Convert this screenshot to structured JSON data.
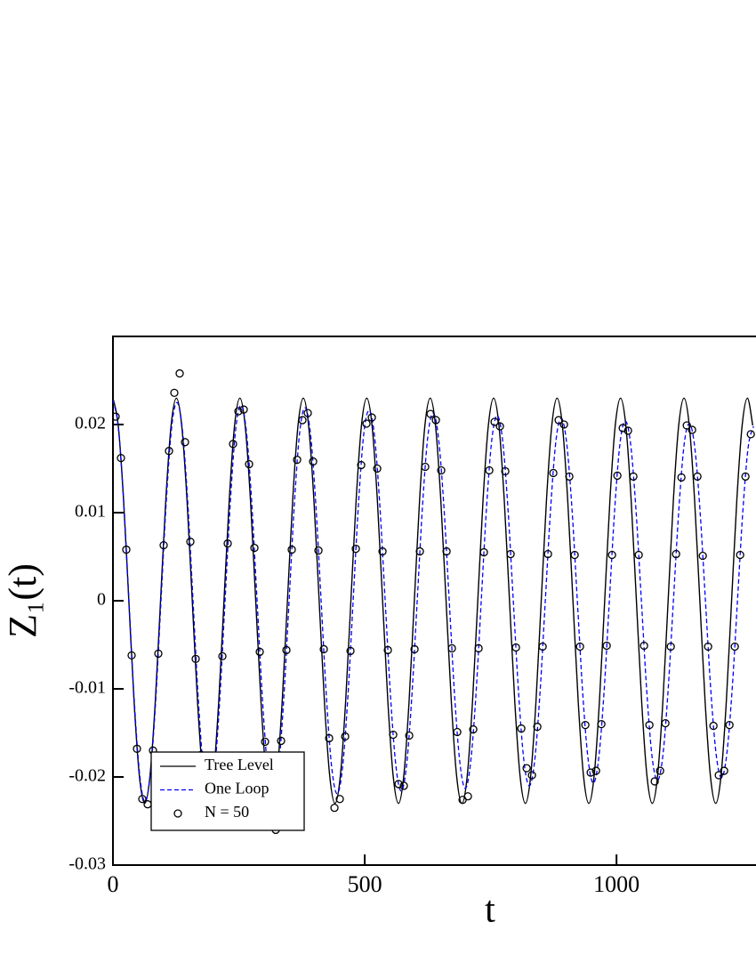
{
  "chart_data": {
    "type": "line",
    "xlabel": "t",
    "ylabel": "Z₁(t)",
    "xlim": [
      0,
      1277
    ],
    "ylim": [
      -0.03,
      0.03
    ],
    "xticks": [
      0,
      500,
      1000
    ],
    "yticks": [
      -0.03,
      -0.02,
      -0.01,
      0,
      0.01,
      0.02
    ],
    "legend": "lower left",
    "series": [
      {
        "name": "Tree Level",
        "type": "line",
        "color": "#000000",
        "dash": false,
        "x": [
          0,
          10.5,
          21,
          31.5,
          42,
          52.5,
          63,
          73.5,
          84,
          94.5,
          105,
          115.5,
          126,
          136.5,
          147,
          157.5,
          168,
          178.5,
          189,
          199.5,
          210,
          220.5,
          231,
          241.5,
          252,
          262.5,
          273,
          283.5,
          294,
          304.5,
          315,
          325.5,
          336,
          346.5,
          357,
          367.5,
          378,
          388.5,
          399,
          409.5,
          420,
          430.5,
          441,
          451.5,
          462,
          472.5,
          483,
          493.5,
          504,
          514.5,
          525,
          535.5,
          546,
          556.5,
          567,
          577.5,
          588,
          598.5,
          609,
          619.5,
          630,
          640.5,
          651,
          661.5,
          672,
          682.5,
          693,
          703.5,
          714,
          724.5,
          735,
          745.5,
          756,
          766.5,
          777,
          787.5,
          798,
          808.5,
          819,
          829.5,
          840,
          850.5,
          861,
          871.5,
          882,
          892.5,
          903,
          913.5,
          924,
          934.5,
          945,
          955.5,
          966,
          976.5,
          987,
          997.5,
          1008,
          1018.5,
          1029,
          1039.5,
          1050,
          1060.5,
          1071,
          1081.5,
          1092,
          1102.5,
          1113,
          1123.5,
          1134,
          1144.5,
          1155,
          1165.5,
          1176,
          1186.5,
          1197,
          1207.5,
          1218,
          1228.5,
          1239,
          1249.5,
          1260,
          1270.5
        ],
        "values": [
          0.023,
          0.0199,
          0.0115,
          0,
          -0.0115,
          -0.0199,
          -0.023,
          -0.0199,
          -0.0115,
          0,
          0.0115,
          0.0199,
          0.023,
          0.0199,
          0.0115,
          0,
          -0.0115,
          -0.0199,
          -0.023,
          -0.0199,
          -0.0115,
          0,
          0.0115,
          0.0199,
          0.023,
          0.0199,
          0.0115,
          0,
          -0.0115,
          -0.0199,
          -0.023,
          -0.0199,
          -0.0115,
          0,
          0.0115,
          0.0199,
          0.023,
          0.0199,
          0.0115,
          0,
          -0.0115,
          -0.0199,
          -0.023,
          -0.0199,
          -0.0115,
          0,
          0.0115,
          0.0199,
          0.023,
          0.0199,
          0.0115,
          0,
          -0.0115,
          -0.0199,
          -0.023,
          -0.0199,
          -0.0115,
          0,
          0.0115,
          0.0199,
          0.023,
          0.0199,
          0.0115,
          0,
          -0.0115,
          -0.0199,
          -0.023,
          -0.0199,
          -0.0115,
          0,
          0.0115,
          0.0199,
          0.023,
          0.0199,
          0.0115,
          0,
          -0.0115,
          -0.0199,
          -0.023,
          -0.0199,
          -0.0115,
          0,
          0.0115,
          0.0199,
          0.023,
          0.0199,
          0.0115,
          0,
          -0.0115,
          -0.0199,
          -0.023,
          -0.0199,
          -0.0115,
          0,
          0.0115,
          0.0199,
          0.023,
          0.0199,
          0.0115,
          0,
          -0.0115,
          -0.0199,
          -0.023,
          -0.0199,
          -0.0115,
          0,
          0.0115,
          0.0199,
          0.023,
          0.0199,
          0.0115,
          0,
          -0.0115,
          -0.0199,
          -0.023,
          -0.0199,
          -0.0115,
          0,
          0.0115,
          0.0199,
          0.023,
          0.0199
        ]
      },
      {
        "name": "One Loop",
        "type": "line",
        "color": "#0000ff",
        "dash": true,
        "x": [
          0,
          10.6,
          21.2,
          31.8,
          42.4,
          53,
          63.6,
          74.2,
          84.8,
          95.4,
          106,
          116.6,
          127.2,
          137.8,
          148.4,
          159,
          169.6,
          180.2,
          190.8,
          201.4,
          212,
          222.6,
          233.2,
          243.8,
          254.4,
          265,
          275.6,
          286.2,
          296.8,
          307.4,
          318,
          328.6,
          339.2,
          349.8,
          360.4,
          371,
          381.6,
          392.2,
          402.8,
          413.4,
          424,
          434.6,
          445.2,
          455.8,
          466.4,
          477,
          487.6,
          498.2,
          508.8,
          519.4,
          530,
          540.6,
          551.2,
          561.8,
          572.4,
          583,
          593.6,
          604.2,
          614.8,
          625.4,
          636,
          646.6,
          657.2,
          667.8,
          678.4,
          689,
          699.6,
          710.2,
          720.8,
          731.4,
          742,
          752.6,
          763.2,
          773.8,
          784.4,
          795,
          805.6,
          816.2,
          826.8,
          837.4,
          848,
          858.6,
          869.2,
          879.8,
          890.4,
          901,
          911.6,
          922.2,
          932.8,
          943.4,
          954,
          964.6,
          975.2,
          985.8,
          996.4,
          1007,
          1017.6,
          1028.2,
          1038.8,
          1049.4,
          1060,
          1070.6,
          1081.2,
          1091.8,
          1102.4,
          1113,
          1123.6,
          1134.2,
          1144.8,
          1155.4,
          1166,
          1176.6,
          1187.2,
          1197.8,
          1208.4,
          1219,
          1229.6,
          1240.2,
          1250.8,
          1261.4,
          1272
        ],
        "values": [
          0.0228,
          0.0197,
          0.0114,
          0,
          -0.0114,
          -0.0197,
          -0.0228,
          -0.0197,
          -0.0114,
          0,
          0.0114,
          0.0197,
          0.0225,
          0.0195,
          0.0113,
          0,
          -0.0113,
          -0.0195,
          -0.0225,
          -0.0195,
          -0.0113,
          0,
          0.0113,
          0.0195,
          0.0222,
          0.0192,
          0.0111,
          0,
          -0.0111,
          -0.0192,
          -0.0222,
          -0.0192,
          -0.0111,
          0,
          0.0111,
          0.0192,
          0.0219,
          0.019,
          0.011,
          0,
          -0.011,
          -0.019,
          -0.0219,
          -0.019,
          -0.011,
          0,
          0.011,
          0.019,
          0.0216,
          0.0187,
          0.0108,
          0,
          -0.0108,
          -0.0187,
          -0.0216,
          -0.0187,
          -0.0108,
          0,
          0.0108,
          0.0187,
          0.0213,
          0.0184,
          0.0107,
          0,
          -0.0107,
          -0.0184,
          -0.0213,
          -0.0184,
          -0.0107,
          0,
          0.0107,
          0.0184,
          0.021,
          0.0182,
          0.0105,
          0,
          -0.0105,
          -0.0182,
          -0.021,
          -0.0182,
          -0.0105,
          0,
          0.0105,
          0.0182,
          0.0207,
          0.0179,
          0.0104,
          0,
          -0.0104,
          -0.0179,
          -0.0207,
          -0.0179,
          -0.0104,
          0,
          0.0104,
          0.0179,
          0.0204,
          0.0177,
          0.0102,
          0,
          -0.0102,
          -0.0177,
          -0.0204,
          -0.0177,
          -0.0102,
          0,
          0.0102,
          0.0177,
          0.0201,
          0.0174,
          0.0101,
          0,
          -0.0101,
          -0.0174,
          -0.0201,
          -0.0174,
          -0.0101,
          0,
          0.0101,
          0.0174,
          0.0198
        ]
      },
      {
        "name": "N = 50",
        "type": "scatter",
        "color": "#000000",
        "x": [
          5.3,
          15.9,
          26.5,
          37.1,
          47.7,
          58.3,
          68.9,
          79.5,
          90.1,
          100.7,
          111.3,
          121.9,
          132.5,
          143.1,
          153.7,
          164.3,
          174.9,
          185.5,
          196.1,
          206.7,
          217.3,
          227.9,
          238.5,
          249.1,
          259.7,
          270.3,
          280.9,
          291.5,
          302.1,
          312.7,
          323.3,
          333.9,
          344.5,
          355.1,
          365.7,
          376.3,
          386.9,
          397.5,
          408.1,
          418.7,
          429.3,
          439.9,
          450.5,
          461.1,
          471.7,
          482.3,
          492.9,
          503.5,
          514.1,
          524.7,
          535.3,
          545.9,
          556.5,
          567.1,
          577.7,
          588.3,
          598.9,
          609.5,
          620.1,
          630.7,
          641.3,
          651.9,
          662.5,
          673.1,
          683.7,
          694.3,
          704.9,
          715.5,
          726.1,
          736.7,
          747.3,
          757.9,
          768.5,
          779.1,
          789.7,
          800.3,
          810.9,
          821.5,
          832.1,
          842.7,
          853.3,
          863.9,
          874.5,
          885.1,
          895.7,
          906.3,
          916.9,
          927.5,
          938.1,
          948.7,
          959.3,
          969.9,
          980.5,
          991.1,
          1001.7,
          1012.3,
          1022.9,
          1033.5,
          1044.1,
          1054.7,
          1065.3,
          1075.9,
          1086.5,
          1097.1,
          1107.7,
          1118.3,
          1128.9,
          1139.5,
          1150.1,
          1160.7,
          1171.3,
          1181.9,
          1192.5,
          1203.1,
          1213.7,
          1224.3,
          1234.9,
          1245.5,
          1256.1,
          1266.7
        ],
        "values": [
          0.0209,
          0.0162,
          0.0058,
          -0.0062,
          -0.0168,
          -0.0225,
          -0.0231,
          -0.017,
          -0.006,
          0.0063,
          0.017,
          0.0236,
          0.0258,
          0.018,
          0.0067,
          -0.0066,
          -0.0175,
          -0.0238,
          -0.0242,
          -0.0177,
          -0.0063,
          0.0065,
          0.0178,
          0.0215,
          0.0217,
          0.0155,
          0.006,
          -0.0058,
          -0.016,
          -0.0226,
          -0.026,
          -0.0159,
          -0.0056,
          0.0058,
          0.016,
          0.0205,
          0.0213,
          0.0158,
          0.0057,
          -0.0055,
          -0.0156,
          -0.0235,
          -0.0225,
          -0.0154,
          -0.0057,
          0.0059,
          0.0154,
          0.0201,
          0.0208,
          0.015,
          0.0056,
          -0.0056,
          -0.0152,
          -0.0208,
          -0.021,
          -0.0153,
          -0.0055,
          0.0056,
          0.0152,
          0.0212,
          0.0205,
          0.0148,
          0.0056,
          -0.0054,
          -0.0149,
          -0.0226,
          -0.0222,
          -0.0146,
          -0.0054,
          0.0055,
          0.0148,
          0.0203,
          0.0198,
          0.0147,
          0.0053,
          -0.0053,
          -0.0145,
          -0.019,
          -0.0198,
          -0.0143,
          -0.0052,
          0.0053,
          0.0145,
          0.0205,
          0.02,
          0.0141,
          0.0052,
          -0.0052,
          -0.0141,
          -0.0195,
          -0.0193,
          -0.014,
          -0.0051,
          0.0052,
          0.0142,
          0.0196,
          0.0193,
          0.0141,
          0.0052,
          -0.0051,
          -0.0141,
          -0.0205,
          -0.0193,
          -0.0139,
          -0.0052,
          0.0053,
          0.014,
          0.0199,
          0.0194,
          0.0141,
          0.0051,
          -0.0052,
          -0.0142,
          -0.0198,
          -0.0193,
          -0.0141,
          -0.0052,
          0.0052,
          0.0141,
          0.0189
        ]
      }
    ]
  }
}
